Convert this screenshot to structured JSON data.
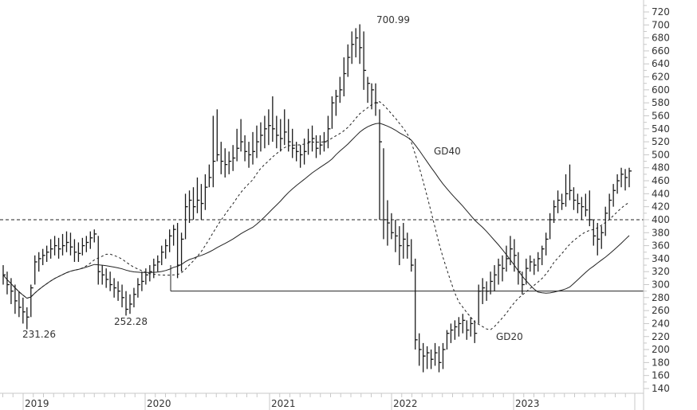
{
  "chart_data": {
    "type": "line",
    "subtype": "ohlc-weekly-bars",
    "title": "",
    "xlabel": "",
    "ylabel": "",
    "ylim": [
      140,
      720
    ],
    "yticks": [
      140,
      160,
      180,
      200,
      220,
      240,
      260,
      280,
      300,
      320,
      340,
      360,
      380,
      400,
      420,
      440,
      460,
      480,
      500,
      520,
      540,
      560,
      580,
      600,
      620,
      640,
      660,
      680,
      700,
      720
    ],
    "xticks": [
      "2019",
      "2020",
      "2021",
      "2022",
      "2023"
    ],
    "grid": false,
    "axis_position": "right",
    "annotations": [
      {
        "text": "700.99",
        "kind": "high",
        "value": 700.99
      },
      {
        "text": "231.26",
        "kind": "low",
        "value": 231.26
      },
      {
        "text": "252.28",
        "kind": "low",
        "value": 252.28
      },
      {
        "text": "GD40",
        "kind": "series-label"
      },
      {
        "text": "GD20",
        "kind": "series-label"
      }
    ],
    "horizontal_lines": [
      {
        "value": 400,
        "style": "dashed"
      },
      {
        "value": 290,
        "style": "solid",
        "start": "early 2020"
      }
    ],
    "series": [
      {
        "name": "price",
        "style": "bars",
        "note": "weekly high/low/close, approx"
      },
      {
        "name": "GD20",
        "style": "dashed"
      },
      {
        "name": "GD40",
        "style": "solid"
      }
    ],
    "price_bars": [
      [
        330,
        300,
        315
      ],
      [
        320,
        285,
        300
      ],
      [
        310,
        270,
        290
      ],
      [
        300,
        255,
        275
      ],
      [
        290,
        250,
        265
      ],
      [
        280,
        240,
        258
      ],
      [
        265,
        231.26,
        250
      ],
      [
        300,
        250,
        295
      ],
      [
        345,
        300,
        335
      ],
      [
        350,
        320,
        340
      ],
      [
        355,
        330,
        345
      ],
      [
        360,
        335,
        350
      ],
      [
        370,
        340,
        355
      ],
      [
        375,
        345,
        360
      ],
      [
        372,
        340,
        355
      ],
      [
        378,
        345,
        360
      ],
      [
        382,
        350,
        365
      ],
      [
        380,
        345,
        358
      ],
      [
        370,
        335,
        350
      ],
      [
        365,
        335,
        348
      ],
      [
        372,
        345,
        360
      ],
      [
        375,
        350,
        365
      ],
      [
        382,
        355,
        372
      ],
      [
        385,
        365,
        378
      ],
      [
        375,
        300,
        320
      ],
      [
        330,
        300,
        315
      ],
      [
        325,
        295,
        308
      ],
      [
        320,
        290,
        300
      ],
      [
        310,
        280,
        295
      ],
      [
        305,
        275,
        290
      ],
      [
        300,
        265,
        280
      ],
      [
        290,
        252.28,
        262
      ],
      [
        285,
        255,
        270
      ],
      [
        295,
        265,
        285
      ],
      [
        310,
        280,
        300
      ],
      [
        320,
        290,
        305
      ],
      [
        325,
        300,
        315
      ],
      [
        330,
        305,
        320
      ],
      [
        340,
        310,
        330
      ],
      [
        345,
        320,
        335
      ],
      [
        360,
        330,
        350
      ],
      [
        370,
        340,
        360
      ],
      [
        385,
        350,
        375
      ],
      [
        392,
        360,
        385
      ],
      [
        395,
        310,
        330
      ],
      [
        380,
        320,
        370
      ],
      [
        440,
        370,
        420
      ],
      [
        445,
        395,
        430
      ],
      [
        450,
        400,
        420
      ],
      [
        465,
        410,
        430
      ],
      [
        455,
        400,
        425
      ],
      [
        470,
        415,
        450
      ],
      [
        485,
        450,
        465
      ],
      [
        560,
        450,
        490
      ],
      [
        570,
        490,
        500
      ],
      [
        520,
        470,
        490
      ],
      [
        510,
        465,
        485
      ],
      [
        505,
        470,
        490
      ],
      [
        515,
        475,
        495
      ],
      [
        540,
        490,
        510
      ],
      [
        555,
        505,
        520
      ],
      [
        530,
        490,
        505
      ],
      [
        520,
        480,
        500
      ],
      [
        535,
        485,
        505
      ],
      [
        545,
        495,
        520
      ],
      [
        550,
        505,
        530
      ],
      [
        560,
        510,
        540
      ],
      [
        570,
        515,
        545
      ],
      [
        590,
        520,
        540
      ],
      [
        560,
        510,
        530
      ],
      [
        555,
        505,
        525
      ],
      [
        570,
        515,
        535
      ],
      [
        555,
        505,
        520
      ],
      [
        540,
        495,
        510
      ],
      [
        520,
        490,
        505
      ],
      [
        515,
        480,
        500
      ],
      [
        525,
        485,
        505
      ],
      [
        540,
        500,
        520
      ],
      [
        545,
        505,
        525
      ],
      [
        530,
        495,
        510
      ],
      [
        530,
        500,
        515
      ],
      [
        535,
        505,
        520
      ],
      [
        560,
        510,
        540
      ],
      [
        590,
        540,
        580
      ],
      [
        600,
        560,
        590
      ],
      [
        620,
        580,
        600
      ],
      [
        650,
        590,
        625
      ],
      [
        670,
        620,
        650
      ],
      [
        690,
        640,
        670
      ],
      [
        695,
        650,
        680
      ],
      [
        700.99,
        640,
        665
      ],
      [
        690,
        600,
        630
      ],
      [
        620,
        580,
        610
      ],
      [
        610,
        570,
        600
      ],
      [
        610,
        560,
        580
      ],
      [
        570,
        400,
        520
      ],
      [
        510,
        370,
        400
      ],
      [
        430,
        360,
        395
      ],
      [
        410,
        370,
        380
      ],
      [
        400,
        350,
        375
      ],
      [
        390,
        330,
        360
      ],
      [
        395,
        340,
        370
      ],
      [
        380,
        340,
        360
      ],
      [
        370,
        320,
        330
      ],
      [
        340,
        200,
        215
      ],
      [
        225,
        175,
        200
      ],
      [
        210,
        165,
        190
      ],
      [
        205,
        170,
        195
      ],
      [
        200,
        170,
        185
      ],
      [
        210,
        175,
        195
      ],
      [
        205,
        165,
        180
      ],
      [
        210,
        170,
        200
      ],
      [
        230,
        200,
        225
      ],
      [
        240,
        210,
        230
      ],
      [
        245,
        215,
        235
      ],
      [
        250,
        220,
        240
      ],
      [
        255,
        225,
        245
      ],
      [
        245,
        215,
        230
      ],
      [
        250,
        220,
        240
      ],
      [
        245,
        210,
        225
      ],
      [
        300,
        240,
        290
      ],
      [
        310,
        270,
        295
      ],
      [
        305,
        275,
        290
      ],
      [
        320,
        285,
        305
      ],
      [
        330,
        290,
        315
      ],
      [
        340,
        300,
        330
      ],
      [
        345,
        305,
        325
      ],
      [
        360,
        320,
        340
      ],
      [
        375,
        330,
        355
      ],
      [
        370,
        320,
        345
      ],
      [
        350,
        300,
        320
      ],
      [
        320,
        285,
        300
      ],
      [
        340,
        300,
        325
      ],
      [
        345,
        320,
        335
      ],
      [
        340,
        315,
        330
      ],
      [
        350,
        320,
        340
      ],
      [
        360,
        330,
        355
      ],
      [
        380,
        345,
        370
      ],
      [
        410,
        370,
        400
      ],
      [
        430,
        395,
        420
      ],
      [
        445,
        410,
        430
      ],
      [
        440,
        415,
        425
      ],
      [
        470,
        420,
        440
      ],
      [
        485,
        430,
        445
      ],
      [
        450,
        415,
        430
      ],
      [
        440,
        410,
        425
      ],
      [
        435,
        400,
        420
      ],
      [
        440,
        405,
        415
      ],
      [
        445,
        390,
        400
      ],
      [
        400,
        360,
        375
      ],
      [
        395,
        345,
        370
      ],
      [
        390,
        355,
        380
      ],
      [
        420,
        375,
        410
      ],
      [
        440,
        400,
        430
      ],
      [
        455,
        420,
        445
      ],
      [
        470,
        440,
        460
      ],
      [
        480,
        450,
        470
      ],
      [
        478,
        445,
        465
      ],
      [
        480,
        450,
        475
      ]
    ],
    "GD20_values_approx": "oscillating moving average: ~340 (2019) → 320 → 295 (late 2019) → 560 → 620 (late 2021) → 205 (mid 2022) → 420 (late 2023)",
    "GD40_values_approx": "~335 (2019) → 320 (early 2020) → 510 (2021) → 570 (end 2021) → 240 (early 2023) → 400 (late 2023)"
  },
  "labels": {
    "high_peak": "700.99",
    "low_2019": "231.26",
    "low_2019b": "252.28",
    "gd40": "GD40",
    "gd20": "GD20"
  },
  "colors": {
    "bars": "#1a1a1a",
    "axis": "#c8c8c8",
    "text": "#333333"
  }
}
